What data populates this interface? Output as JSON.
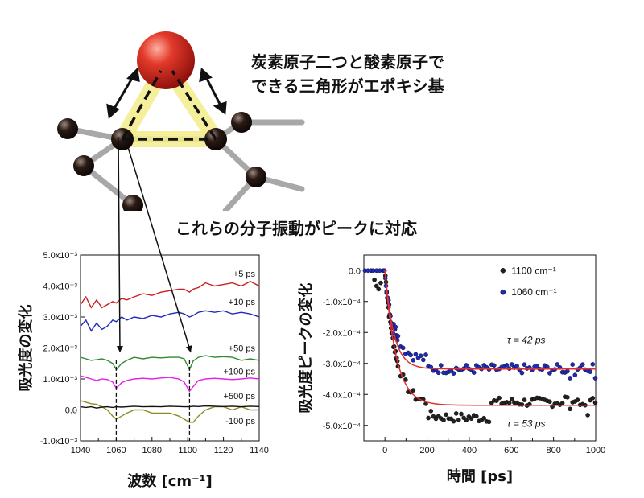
{
  "annotations": {
    "epoxy_line1": "炭素原子二つと酸素原子で",
    "epoxy_line2": "できる三角形がエポキシ基",
    "vibration": "これらの分子振動がピークに対応"
  },
  "colors": {
    "red": "#cc1f1f",
    "blue": "#1f2bb8",
    "green": "#2e8b2e",
    "magenta": "#e61ee6",
    "olive": "#8c8c1f",
    "black": "#111111",
    "fit": "#e03030",
    "oxygen": "#d62828",
    "highlight": "#f3ec8a"
  },
  "chart_data": [
    {
      "type": "line",
      "xlabel": "波数 [cm⁻¹]",
      "ylabel": "吸光度の変化",
      "xlim": [
        1040,
        1140
      ],
      "ylim": [
        -0.001,
        0.005
      ],
      "xticks": [
        "1040",
        "1060",
        "1080",
        "1100",
        "1120",
        "1140"
      ],
      "yticks": [
        "-1.0x10⁻³",
        "0.0",
        "1.0x10⁻³",
        "2.0x10⁻³",
        "3.0x10⁻³",
        "4.0x10⁻³",
        "5.0x10⁻³"
      ],
      "x": [
        1040,
        1043,
        1046,
        1049,
        1052,
        1055,
        1058,
        1060,
        1063,
        1066,
        1070,
        1075,
        1080,
        1085,
        1090,
        1095,
        1098,
        1101,
        1103,
        1106,
        1110,
        1115,
        1120,
        1125,
        1130,
        1135,
        1140
      ],
      "series": [
        {
          "name": "+5 ps",
          "color": "red",
          "values": [
            0.0034,
            0.00365,
            0.0033,
            0.00355,
            0.0033,
            0.0034,
            0.0035,
            0.00345,
            0.0036,
            0.00355,
            0.00365,
            0.00375,
            0.0037,
            0.0038,
            0.00385,
            0.0039,
            0.0039,
            0.0038,
            0.0039,
            0.00395,
            0.0041,
            0.004,
            0.00405,
            0.0041,
            0.004,
            0.00415,
            0.004
          ]
        },
        {
          "name": "+10 ps",
          "color": "blue",
          "values": [
            0.0027,
            0.0029,
            0.00255,
            0.0028,
            0.0026,
            0.0027,
            0.0029,
            0.00285,
            0.003,
            0.0029,
            0.003,
            0.00295,
            0.00305,
            0.003,
            0.0031,
            0.00315,
            0.0031,
            0.003,
            0.00305,
            0.00315,
            0.0032,
            0.00315,
            0.0032,
            0.0031,
            0.00315,
            0.0031,
            0.003
          ]
        },
        {
          "name": "+50 ps",
          "color": "green",
          "values": [
            0.0017,
            0.00165,
            0.0016,
            0.00162,
            0.00165,
            0.0016,
            0.0015,
            0.0013,
            0.0015,
            0.0016,
            0.0017,
            0.00165,
            0.0017,
            0.00168,
            0.0017,
            0.0017,
            0.00165,
            0.0013,
            0.00158,
            0.0017,
            0.00175,
            0.0017,
            0.00172,
            0.0017,
            0.0016,
            0.00165,
            0.0016
          ]
        },
        {
          "name": "+100 ps",
          "color": "magenta",
          "values": [
            0.0011,
            0.00105,
            0.001,
            0.00095,
            0.001,
            0.00098,
            0.0009,
            0.0007,
            0.00088,
            0.00095,
            0.001,
            0.00102,
            0.001,
            0.00103,
            0.00105,
            0.001,
            0.0009,
            0.0006,
            0.00075,
            0.00095,
            0.001,
            0.00102,
            0.001,
            0.00098,
            0.001,
            0.00103,
            0.001
          ]
        },
        {
          "name": "+500 ps",
          "color": "olive",
          "values": [
            0.0003,
            0.00025,
            0.0002,
            0.00018,
            0.0001,
            0.0,
            -0.0002,
            -0.0003,
            -0.0002,
            -0.0001,
            0.0,
            0.0,
            -0.0001,
            -0.0001,
            -0.0001,
            -0.0002,
            -0.0003,
            -0.0004,
            -0.0004,
            -0.0002,
            0.0,
            0.0001,
            0.0001,
            0.0,
            0.0001,
            0.0,
            0.0
          ]
        },
        {
          "name": "-100 ps",
          "color": "black",
          "values": [
            0.0001,
            8e-05,
            0.0001,
            6e-05,
            9e-05,
            0.0001,
            8e-05,
            0.0001,
            9e-05,
            0.0001,
            0.00012,
            0.0001,
            0.00011,
            0.0001,
            0.00012,
            0.00011,
            0.0001,
            0.0001,
            0.00012,
            0.00011,
            0.00013,
            0.00012,
            0.00011,
            0.00012,
            0.0001,
            0.00012,
            0.00011
          ]
        }
      ],
      "markers": [
        1060,
        1101
      ]
    },
    {
      "type": "scatter",
      "xlabel": "時間 [ps]",
      "ylabel": "吸光度ピークの変化",
      "xlim": [
        -100,
        1000
      ],
      "ylim": [
        -0.00055,
        5e-05
      ],
      "xticks": [
        "0",
        "200",
        "400",
        "600",
        "800",
        "1000"
      ],
      "yticks": [
        "0.0",
        "-1.0x10⁻⁴",
        "-2.0x10⁻⁴",
        "-3.0x10⁻⁴",
        "-4.0x10⁻⁴",
        "-5.0x10⁻⁴"
      ],
      "legend_position": "top-right",
      "series": [
        {
          "name": "1100 cm⁻¹",
          "color": "black",
          "tau_label": "τ = 53 ps",
          "plateau": -0.000435,
          "tau": 53
        },
        {
          "name": "1060 cm⁻¹",
          "color": "blue",
          "tau_label": "τ = 42 ps",
          "plateau": -0.000318,
          "tau": 42
        }
      ]
    }
  ]
}
